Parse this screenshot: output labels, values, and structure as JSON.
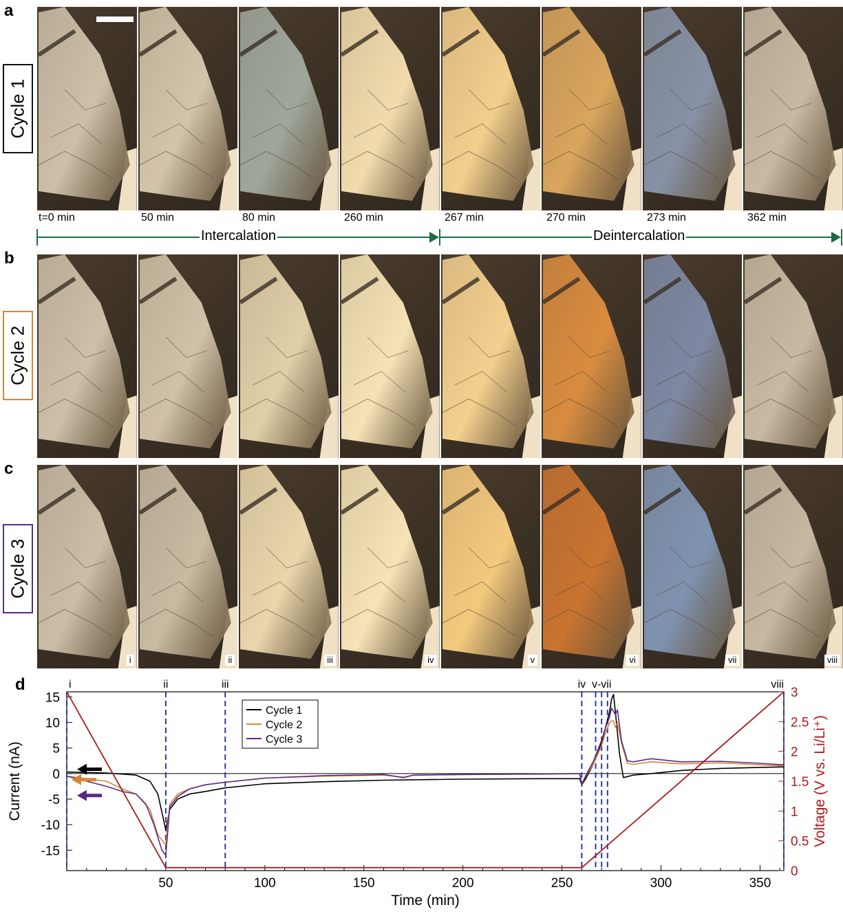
{
  "panels": {
    "a": "a",
    "b": "b",
    "c": "c",
    "d": "d"
  },
  "cycles": [
    "Cycle 1",
    "Cycle 2",
    "Cycle 3"
  ],
  "cycle_colors": [
    "#000000",
    "#d2883a",
    "#5b2a86"
  ],
  "time_labels": [
    "t=0 min",
    "50 min",
    "80 min",
    "260 min",
    "267 min",
    "270 min",
    "273 min",
    "362 min"
  ],
  "frame_numerals": [
    "i",
    "ii",
    "iii",
    "iv",
    "v",
    "vi",
    "vii",
    "viii"
  ],
  "phases": {
    "intercalation": "Intercalation",
    "deintercalation": "Deintercalation"
  },
  "frame_colors": {
    "cycle1": [
      "#cdbfa8",
      "#d3c4aa",
      "#9fa79c",
      "#f2dcae",
      "#f3cf8d",
      "#d9a55e",
      "#8792a6",
      "#c9b9a3"
    ],
    "cycle2": [
      "#cdbfa8",
      "#d0c1a8",
      "#e1cfa9",
      "#f5e2b6",
      "#f4d08f",
      "#d98c3f",
      "#7d88a3",
      "#c9b9a3"
    ],
    "cycle3": [
      "#cbbda7",
      "#c9baa2",
      "#e9d6ac",
      "#f6e3b6",
      "#f3c97e",
      "#c97430",
      "#7f93b0",
      "#c7b8a2"
    ]
  },
  "chart_data": {
    "type": "line",
    "xlabel": "Time (min)",
    "ylabel_left": "Current (nA)",
    "ylabel_right": "Voltage (V vs. Li/Li⁺)",
    "xlim": [
      0,
      362
    ],
    "ylim_left": [
      -19,
      16
    ],
    "ylim_right": [
      0,
      3
    ],
    "xticks": [
      50,
      100,
      150,
      200,
      250,
      300,
      350
    ],
    "yticks_left": [
      15,
      10,
      5,
      0,
      -5,
      -10,
      -15
    ],
    "yticks_right": [
      0,
      0.5,
      1,
      1.5,
      2,
      2.5,
      3
    ],
    "yticks_right_labels": [
      "0",
      "0.5",
      "1",
      "1.5",
      "2",
      "2.5",
      "3"
    ],
    "markers": [
      {
        "t": 0,
        "label": "i"
      },
      {
        "t": 50,
        "label": "ii"
      },
      {
        "t": 80,
        "label": "iii"
      },
      {
        "t": 260,
        "label": "iv"
      },
      {
        "t": 267,
        "label": ""
      },
      {
        "t": 270,
        "label": "v-vii"
      },
      {
        "t": 273,
        "label": ""
      },
      {
        "t": 362,
        "label": "viii"
      }
    ],
    "series": [
      {
        "name": "Cycle 1",
        "color": "#000000",
        "x": [
          0,
          20,
          35,
          42,
          46,
          50,
          52,
          56,
          62,
          70,
          80,
          100,
          130,
          160,
          200,
          240,
          259,
          260,
          262,
          266,
          270,
          272,
          274,
          275,
          276,
          277,
          279,
          281,
          283,
          286,
          295,
          310,
          330,
          350,
          362
        ],
        "y": [
          0.3,
          0.1,
          -0.3,
          -1.5,
          -4,
          -11,
          -7,
          -5,
          -4,
          -3.5,
          -2.8,
          -2,
          -1.6,
          -1.3,
          -1.1,
          -1,
          -1,
          -2.2,
          -1,
          2,
          6,
          9,
          12,
          14.5,
          15.5,
          12,
          4,
          -0.8,
          -0.6,
          -0.3,
          0,
          0.6,
          1,
          1.2,
          1.3
        ]
      },
      {
        "name": "Cycle 2",
        "color": "#d2883a",
        "x": [
          0,
          10,
          20,
          28,
          35,
          42,
          46,
          50,
          52,
          56,
          62,
          70,
          80,
          100,
          130,
          160,
          170,
          175,
          200,
          240,
          259,
          260,
          262,
          266,
          270,
          272,
          274,
          275,
          276,
          277,
          278,
          280,
          283,
          286,
          295,
          310,
          330,
          350,
          362
        ],
        "y": [
          -0.5,
          -1,
          -1.5,
          -3,
          -4,
          -7,
          -12,
          -14,
          -6,
          -4,
          -3,
          -2.2,
          -1.7,
          -0.9,
          -0.5,
          -0.3,
          -0.7,
          -0.3,
          -0.2,
          -0.1,
          0,
          -2,
          -0.5,
          2,
          5.5,
          8,
          10,
          10.3,
          10.3,
          9,
          10,
          6,
          2,
          1.8,
          2.3,
          1.9,
          2.1,
          1.7,
          1.5
        ]
      },
      {
        "name": "Cycle 3",
        "color": "#5b2a86",
        "x": [
          0,
          10,
          20,
          28,
          35,
          40,
          44,
          48,
          50,
          52,
          56,
          62,
          70,
          80,
          100,
          130,
          160,
          170,
          175,
          200,
          240,
          259,
          260,
          262,
          266,
          270,
          272,
          274,
          275,
          276,
          277,
          278,
          280,
          283,
          286,
          295,
          310,
          330,
          350,
          362
        ],
        "y": [
          -0.5,
          -1.5,
          -2.5,
          -3.5,
          -4,
          -6,
          -10,
          -15,
          -16,
          -6.5,
          -4.5,
          -3,
          -2.2,
          -1.7,
          -0.9,
          -0.4,
          -0.2,
          -0.8,
          -0.3,
          -0.2,
          -0.1,
          0,
          -2.2,
          -0.4,
          2.5,
          6.5,
          9,
          11,
          12.8,
          12.2,
          11.5,
          12.5,
          6.5,
          2.5,
          2.3,
          2.9,
          2.3,
          2.4,
          2,
          1.7
        ]
      },
      {
        "name": "Voltage",
        "color": "#aa1a1a",
        "axis": "right",
        "x": [
          0,
          50,
          260,
          362
        ],
        "y": [
          3.0,
          0.05,
          0.05,
          3.0
        ]
      }
    ],
    "legend": [
      "Cycle 1",
      "Cycle 2",
      "Cycle 3"
    ],
    "legend_position": "top-center"
  }
}
